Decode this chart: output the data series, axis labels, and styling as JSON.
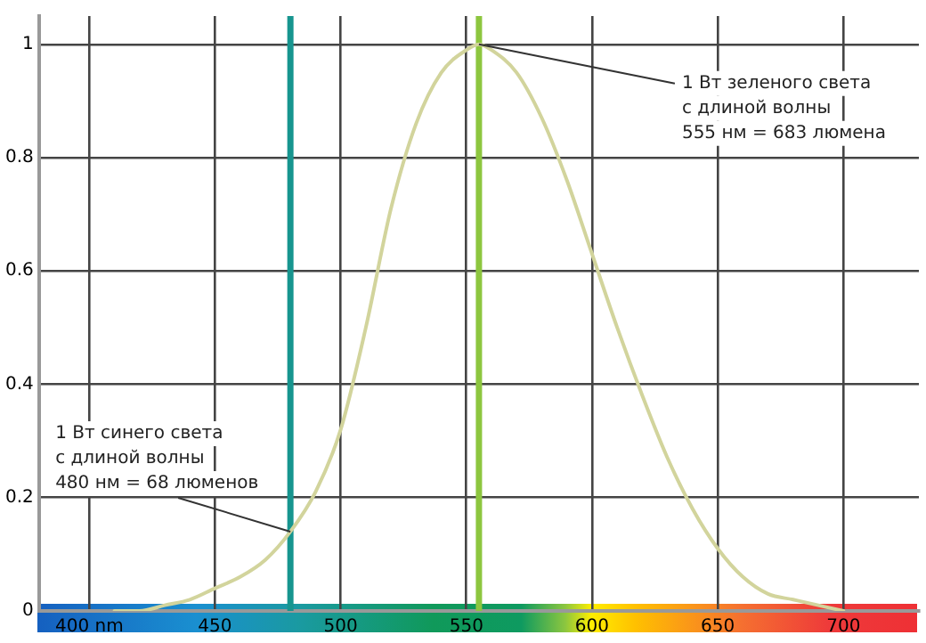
{
  "chart_data": {
    "type": "line",
    "x": [
      410,
      420,
      430,
      440,
      450,
      460,
      470,
      480,
      490,
      500,
      510,
      520,
      530,
      540,
      550,
      555,
      560,
      570,
      580,
      590,
      600,
      610,
      620,
      630,
      640,
      650,
      660,
      670,
      680,
      690,
      700
    ],
    "series": [
      {
        "color": "#d2d49c",
        "values": [
          0,
          0,
          0.01,
          0.02,
          0.04,
          0.06,
          0.09,
          0.14,
          0.21,
          0.32,
          0.5,
          0.71,
          0.86,
          0.95,
          0.99,
          1,
          0.99,
          0.95,
          0.87,
          0.76,
          0.63,
          0.5,
          0.38,
          0.27,
          0.18,
          0.11,
          0.06,
          0.03,
          0.02,
          0.01,
          0
        ]
      }
    ],
    "xlim": [
      380,
      730
    ],
    "xticks": [
      {
        "value": 400,
        "label": "400 nm"
      },
      450,
      500,
      550,
      600,
      650,
      700
    ],
    "ylim": [
      0,
      1.05
    ],
    "yticks": [
      0,
      0.2,
      0.4,
      0.6,
      0.8,
      1
    ],
    "grid": true,
    "marker": "none",
    "line_style": "solid",
    "ref_lines": [
      {
        "axis": "x",
        "value": 480,
        "color": "#17958f"
      },
      {
        "axis": "x",
        "value": 555,
        "color": "#8dc63f"
      }
    ],
    "annotations": [
      {
        "text": "1 Вт синего света\nс длиной волны\n480 нм = 68 люменов",
        "x": 480,
        "y": 0.14
      },
      {
        "text": "1 Вт зеленого света\nс длиной волны\n555 нм = 683 люмена",
        "x": 555,
        "y": 1
      }
    ]
  }
}
